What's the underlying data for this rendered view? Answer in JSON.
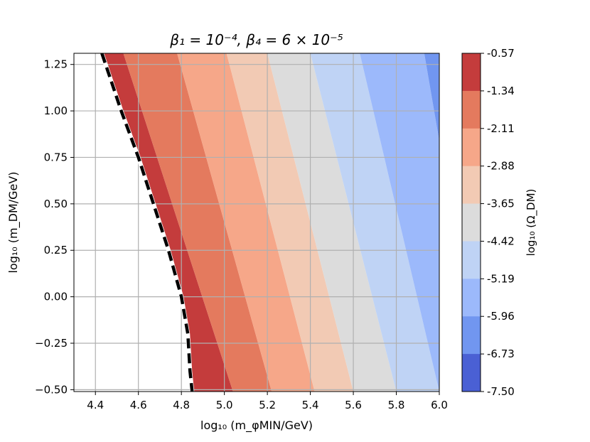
{
  "chart_data": {
    "type": "contourf",
    "title": "β₁ = 10⁻⁴, β₄ = 6 × 10⁻⁵",
    "xlabel": "log₁₀ (m_φMIN/GeV)",
    "ylabel": "log₁₀ (m_DM/GeV)",
    "xlim": [
      4.3,
      6.0
    ],
    "ylim": [
      -0.51,
      1.31
    ],
    "xticks": [
      "4.4",
      "4.6",
      "4.8",
      "5.0",
      "5.2",
      "5.4",
      "5.6",
      "5.8",
      "6.0"
    ],
    "yticks": [
      "−0.50",
      "−0.25",
      "0.00",
      "0.25",
      "0.50",
      "0.75",
      "1.00",
      "1.25"
    ],
    "grid": true,
    "colorbar": {
      "label": "log₁₀ (Ω_DM)",
      "levels": [
        "-0.57",
        "-1.34",
        "-2.11",
        "-2.88",
        "-3.65",
        "-4.42",
        "-5.19",
        "-5.96",
        "-6.73",
        "-7.50"
      ],
      "colors": [
        "#c43c3c",
        "#e47a5e",
        "#f6a789",
        "#f2cab4",
        "#dcdcdc",
        "#bfd3f5",
        "#9cb9fb",
        "#7196f0",
        "#4a60d4"
      ]
    },
    "boundary_line": {
      "style": "dashed",
      "x": [
        4.43,
        4.52,
        4.6,
        4.67,
        4.74,
        4.8,
        4.83,
        4.84,
        4.85
      ],
      "y": [
        1.31,
        1.0,
        0.75,
        0.5,
        0.25,
        0.0,
        -0.2,
        -0.4,
        -0.51
      ]
    },
    "contour_boundaries": [
      {
        "x_top": 4.43,
        "x_bottom": 4.85
      },
      {
        "x_top": 4.53,
        "x_bottom": 5.04
      },
      {
        "x_top": 4.78,
        "x_bottom": 5.22
      },
      {
        "x_top": 5.01,
        "x_bottom": 5.42
      },
      {
        "x_top": 5.2,
        "x_bottom": 5.6
      },
      {
        "x_top": 5.4,
        "x_bottom": 5.8
      },
      {
        "x_top": 5.63,
        "x_bottom": 6.0
      },
      {
        "x_top": 5.93,
        "x_bottom": 6.2
      }
    ]
  }
}
